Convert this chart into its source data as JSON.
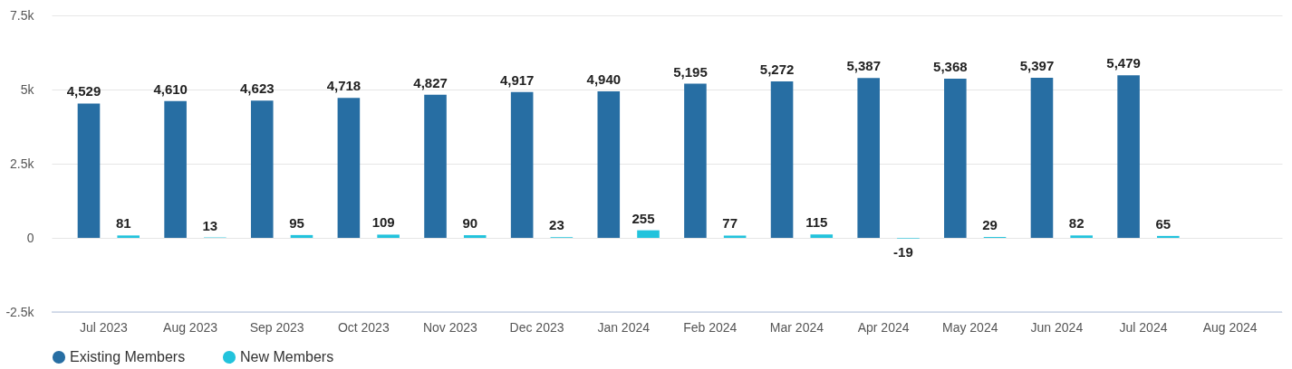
{
  "chart_data": {
    "type": "bar",
    "categories": [
      "Jul 2023",
      "Aug 2023",
      "Sep 2023",
      "Oct 2023",
      "Nov 2023",
      "Dec 2023",
      "Jan 2024",
      "Feb 2024",
      "Mar 2024",
      "Apr 2024",
      "May 2024",
      "Jun 2024",
      "Jul 2024",
      "Aug 2024"
    ],
    "series": [
      {
        "name": "Existing Members",
        "color": "#276ea3",
        "values": [
          4529,
          4610,
          4623,
          4718,
          4827,
          4917,
          4940,
          5195,
          5272,
          5387,
          5368,
          5397,
          5479,
          null
        ],
        "value_labels": [
          "4,529",
          "4,610",
          "4,623",
          "4,718",
          "4,827",
          "4,917",
          "4,940",
          "5,195",
          "5,272",
          "5,387",
          "5,368",
          "5,397",
          "5,479",
          null
        ]
      },
      {
        "name": "New Members",
        "color": "#22c3dc",
        "values": [
          81,
          13,
          95,
          109,
          90,
          23,
          255,
          77,
          115,
          -19,
          29,
          82,
          65,
          null
        ],
        "value_labels": [
          "81",
          "13",
          "95",
          "109",
          "90",
          "23",
          "255",
          "77",
          "115",
          "-19",
          "29",
          "82",
          "65",
          null
        ]
      }
    ],
    "ylim": [
      -2500,
      7500
    ],
    "yticks": [
      {
        "value": -2500,
        "label": "-2.5k"
      },
      0,
      {
        "value": 2500,
        "label": "2.5k"
      },
      {
        "value": 5000,
        "label": "5k"
      },
      {
        "value": 7500,
        "label": "7.5k"
      }
    ],
    "grid": "y",
    "legend": "bottom"
  }
}
